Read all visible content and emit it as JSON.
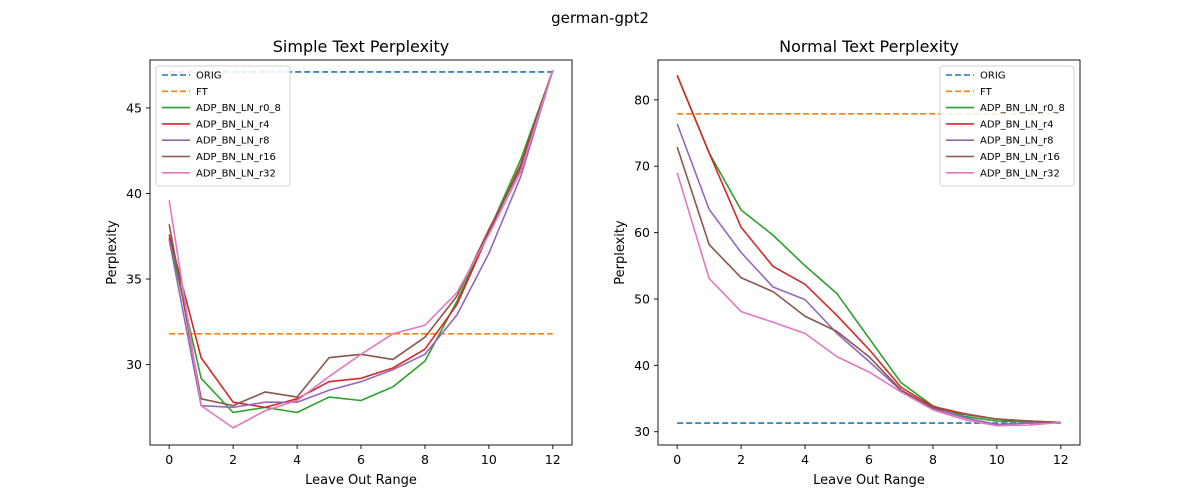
{
  "figure": {
    "suptitle": "german-gpt2"
  },
  "colors": {
    "ORIG": "#1f77b4",
    "FT": "#ff7f0e",
    "ADP_BN_LN_r0_8": "#2ca02c",
    "ADP_BN_LN_r4": "#d62728",
    "ADP_BN_LN_r8": "#9467bd",
    "ADP_BN_LN_r16": "#8c564b",
    "ADP_BN_LN_r32": "#e377c2"
  },
  "chart_data": [
    {
      "type": "line",
      "title": "Simple Text Perplexity",
      "xlabel": "Leave Out Range",
      "ylabel": "Perplexity",
      "xlim": [
        -0.6,
        12.6
      ],
      "ylim": [
        25.3,
        47.8
      ],
      "xticks": [
        0,
        2,
        4,
        6,
        8,
        10,
        12
      ],
      "yticks": [
        30,
        35,
        40,
        45
      ],
      "legend_position": "top-left",
      "x": [
        0,
        1,
        2,
        3,
        4,
        5,
        6,
        7,
        8,
        9,
        10,
        11,
        12
      ],
      "series": [
        {
          "name": "ORIG",
          "style": "dashed",
          "x": [
            0,
            12
          ],
          "values": [
            47.1,
            47.1
          ]
        },
        {
          "name": "FT",
          "style": "dashed",
          "x": [
            0,
            12
          ],
          "values": [
            31.8,
            31.8
          ]
        },
        {
          "name": "ADP_BN_LN_r0_8",
          "style": "solid",
          "values": [
            37.4,
            29.2,
            27.2,
            27.5,
            27.2,
            28.1,
            27.9,
            28.7,
            30.2,
            33.7,
            37.8,
            42.0,
            47.2
          ]
        },
        {
          "name": "ADP_BN_LN_r4",
          "style": "solid",
          "values": [
            37.6,
            30.4,
            27.8,
            27.5,
            28.0,
            29.0,
            29.2,
            29.8,
            30.9,
            33.5,
            37.7,
            41.7,
            47.2
          ]
        },
        {
          "name": "ADP_BN_LN_r8",
          "style": "solid",
          "values": [
            37.3,
            27.6,
            27.5,
            27.8,
            27.8,
            28.5,
            29.0,
            29.7,
            30.6,
            32.9,
            36.5,
            41.0,
            47.2
          ]
        },
        {
          "name": "ADP_BN_LN_r16",
          "style": "solid",
          "values": [
            38.2,
            28.0,
            27.6,
            28.4,
            28.1,
            30.4,
            30.6,
            30.3,
            31.6,
            34.0,
            37.9,
            41.5,
            47.2
          ]
        },
        {
          "name": "ADP_BN_LN_r32",
          "style": "solid",
          "values": [
            39.6,
            27.6,
            26.3,
            27.3,
            27.9,
            29.3,
            30.6,
            31.8,
            32.3,
            34.2,
            37.6,
            41.3,
            47.2
          ]
        }
      ]
    },
    {
      "type": "line",
      "title": "Normal Text Perplexity",
      "xlabel": "Leave Out Range",
      "ylabel": "Perplexity",
      "xlim": [
        -0.6,
        12.6
      ],
      "ylim": [
        28.0,
        86.0
      ],
      "xticks": [
        0,
        2,
        4,
        6,
        8,
        10,
        12
      ],
      "yticks": [
        30,
        40,
        50,
        60,
        70,
        80
      ],
      "legend_position": "top-right",
      "x": [
        0,
        1,
        2,
        3,
        4,
        5,
        6,
        7,
        8,
        9,
        10,
        11,
        12
      ],
      "series": [
        {
          "name": "ORIG",
          "style": "dashed",
          "x": [
            0,
            12
          ],
          "values": [
            31.3,
            31.3
          ]
        },
        {
          "name": "FT",
          "style": "dashed",
          "x": [
            0,
            12
          ],
          "values": [
            77.9,
            77.9
          ]
        },
        {
          "name": "ADP_BN_LN_r0_8",
          "style": "solid",
          "values": [
            83.7,
            72.0,
            63.4,
            59.6,
            55.0,
            50.8,
            44.1,
            37.4,
            33.9,
            32.3,
            31.6,
            31.5,
            31.4
          ]
        },
        {
          "name": "ADP_BN_LN_r4",
          "style": "solid",
          "values": [
            83.7,
            72.0,
            60.8,
            54.9,
            52.2,
            47.5,
            42.4,
            36.7,
            33.8,
            32.7,
            31.9,
            31.6,
            31.4
          ]
        },
        {
          "name": "ADP_BN_LN_r8",
          "style": "solid",
          "values": [
            76.4,
            63.5,
            57.0,
            51.8,
            49.9,
            44.8,
            40.6,
            36.2,
            33.5,
            32.1,
            31.1,
            31.3,
            31.4
          ]
        },
        {
          "name": "ADP_BN_LN_r16",
          "style": "solid",
          "values": [
            72.9,
            58.2,
            53.2,
            51.1,
            47.4,
            45.1,
            41.3,
            36.3,
            33.6,
            32.6,
            31.9,
            31.6,
            31.4
          ]
        },
        {
          "name": "ADP_BN_LN_r32",
          "style": "solid",
          "values": [
            69.0,
            53.1,
            48.1,
            46.5,
            44.8,
            41.3,
            39.0,
            36.0,
            33.3,
            31.8,
            30.9,
            31.0,
            31.4
          ]
        }
      ]
    }
  ]
}
